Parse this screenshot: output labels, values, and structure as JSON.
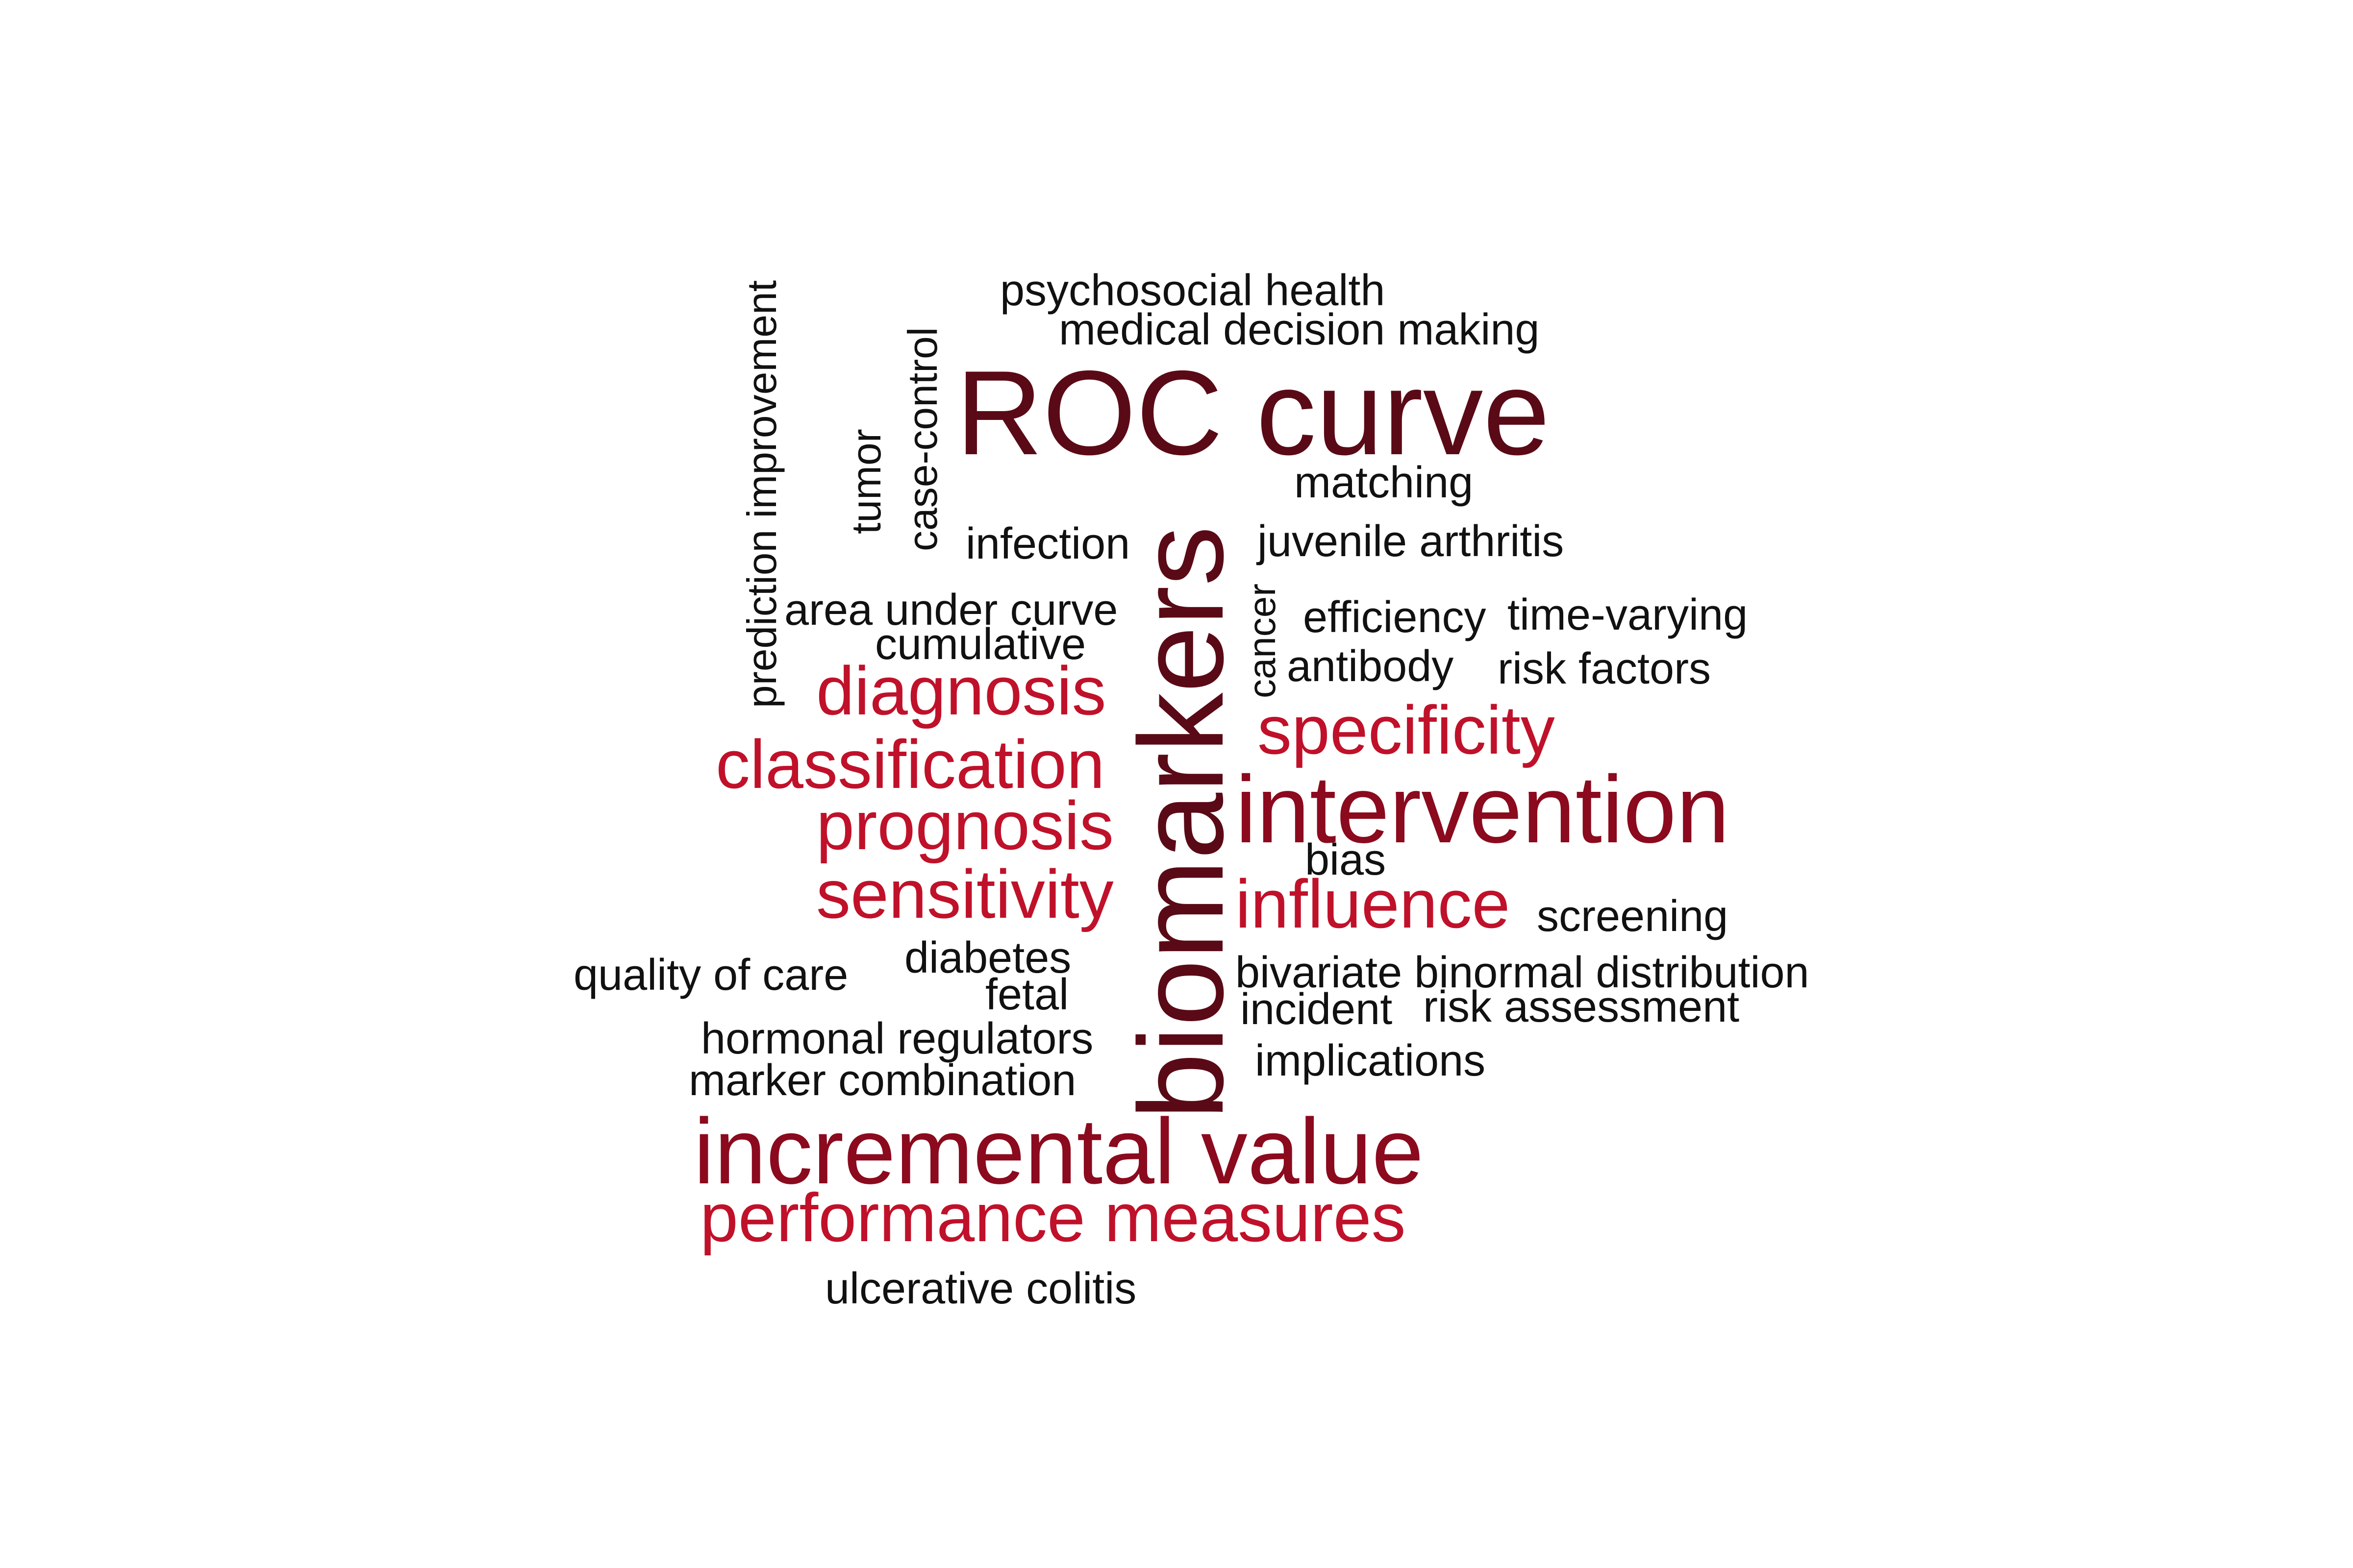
{
  "words": {
    "psychosocial_health": "psychosocial health",
    "medical_decision_making": "medical decision making",
    "roc_curve": "ROC curve",
    "matching": "matching",
    "prediction_improvement": "prediction improvement",
    "tumor": "tumor",
    "case_control": "case-control",
    "infection": "infection",
    "juvenile_arthritis": "juvenile arthritis",
    "area_under_curve": "area under curve",
    "cumulative": "cumulative",
    "cancer": "cancer",
    "efficiency": "efficiency",
    "time_varying": "time-varying",
    "antibody": "antibody",
    "risk_factors": "risk factors",
    "diagnosis": "diagnosis",
    "specificity": "specificity",
    "biomarkers": "biomarkers",
    "classification": "classification",
    "intervention": "intervention",
    "prognosis": "prognosis",
    "bias": "bias",
    "sensitivity": "sensitivity",
    "influence": "influence",
    "screening": "screening",
    "diabetes": "diabetes",
    "quality_of_care": "quality of care",
    "bivariate_binormal_distribution": "bivariate binormal distribution",
    "fetal": "fetal",
    "incident": "incident",
    "risk_assessment": "risk assessment",
    "hormonal_regulators": "hormonal regulators",
    "implications": "implications",
    "marker_combination": "marker combination",
    "incremental_value": "incremental value",
    "performance_measures": "performance measures",
    "ulcerative_colitis": "ulcerative colitis"
  },
  "colors": {
    "black": "#111111",
    "red": "#c0112a",
    "maroon": "#8b0a1e",
    "dark": "#5a0a16"
  }
}
